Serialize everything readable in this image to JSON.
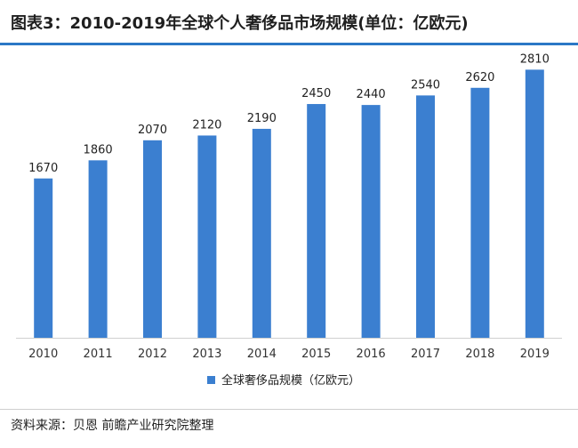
{
  "title": "图表3：2010-2019年全球个人奢侈品市场规模(单位：亿欧元)",
  "source": "资料来源：贝恩 前瞻产业研究院整理",
  "colors": {
    "bar": "#3b7fd0",
    "accent": "#2b78c6"
  },
  "chart_data": {
    "type": "bar",
    "categories": [
      "2010",
      "2011",
      "2012",
      "2013",
      "2014",
      "2015",
      "2016",
      "2017",
      "2018",
      "2019"
    ],
    "series": [
      {
        "name": "全球奢侈品规模（亿欧元）",
        "values": [
          1670,
          1860,
          2070,
          2120,
          2190,
          2450,
          2440,
          2540,
          2620,
          2810
        ]
      }
    ],
    "ylim": [
      0,
      3000
    ],
    "grid": false,
    "legend": "bottom",
    "data_labels": true
  }
}
